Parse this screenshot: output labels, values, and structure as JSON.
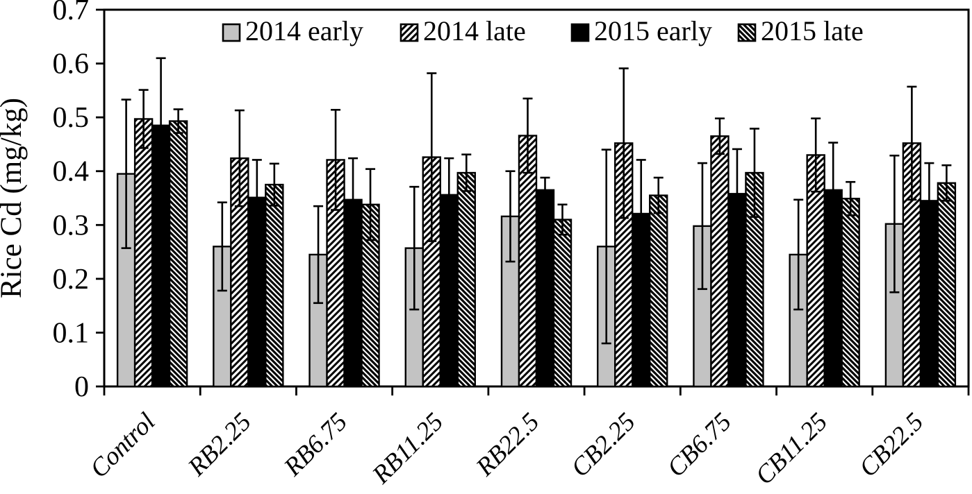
{
  "figure": {
    "title": "",
    "background": "#ffffff"
  },
  "chart_data": {
    "type": "bar",
    "title": "",
    "xlabel": "",
    "ylabel": "Rice Cd (mg/kg)",
    "ylim": [
      0,
      0.7
    ],
    "ytick_step": 0.1,
    "ytick_labels": [
      "0",
      "0.1",
      "0.2",
      "0.3",
      "0.4",
      "0.5",
      "0.6",
      "0.7"
    ],
    "grid": false,
    "legend_position": "top-inside-horizontal",
    "error_bars": "symmetric, black whiskers with end caps",
    "categories": [
      "Control",
      "RB2.25",
      "RB6.75",
      "RB11.25",
      "RB22.5",
      "CB2.25",
      "CB6.75",
      "CB11.25",
      "CB22.5"
    ],
    "series": [
      {
        "name": "2014 early",
        "style": "solid-gray",
        "color": "#c3c3c3",
        "values": [
          0.395,
          0.26,
          0.245,
          0.257,
          0.316,
          0.26,
          0.298,
          0.245,
          0.302
        ],
        "errors": [
          0.138,
          0.082,
          0.09,
          0.114,
          0.084,
          0.18,
          0.117,
          0.102,
          0.127
        ]
      },
      {
        "name": "2014 late",
        "style": "hatch-forward-diagonal",
        "color": "#000000",
        "values": [
          0.497,
          0.424,
          0.421,
          0.426,
          0.466,
          0.452,
          0.465,
          0.43,
          0.452
        ],
        "errors": [
          0.054,
          0.089,
          0.093,
          0.156,
          0.069,
          0.139,
          0.033,
          0.068,
          0.105
        ]
      },
      {
        "name": "2015 early",
        "style": "solid-black",
        "color": "#000000",
        "values": [
          0.485,
          0.351,
          0.347,
          0.356,
          0.365,
          0.321,
          0.358,
          0.365,
          0.345
        ],
        "errors": [
          0.125,
          0.07,
          0.077,
          0.068,
          0.023,
          0.1,
          0.083,
          0.088,
          0.07
        ]
      },
      {
        "name": "2015 late",
        "style": "hatch-backward-diagonal",
        "color": "#000000",
        "values": [
          0.493,
          0.375,
          0.338,
          0.397,
          0.31,
          0.355,
          0.397,
          0.349,
          0.378
        ],
        "errors": [
          0.022,
          0.039,
          0.066,
          0.034,
          0.028,
          0.033,
          0.082,
          0.031,
          0.033
        ]
      }
    ]
  },
  "colors": {
    "bar_gray": "#c3c3c3",
    "bar_black": "#000000",
    "axis": "#000000",
    "background": "#ffffff"
  }
}
